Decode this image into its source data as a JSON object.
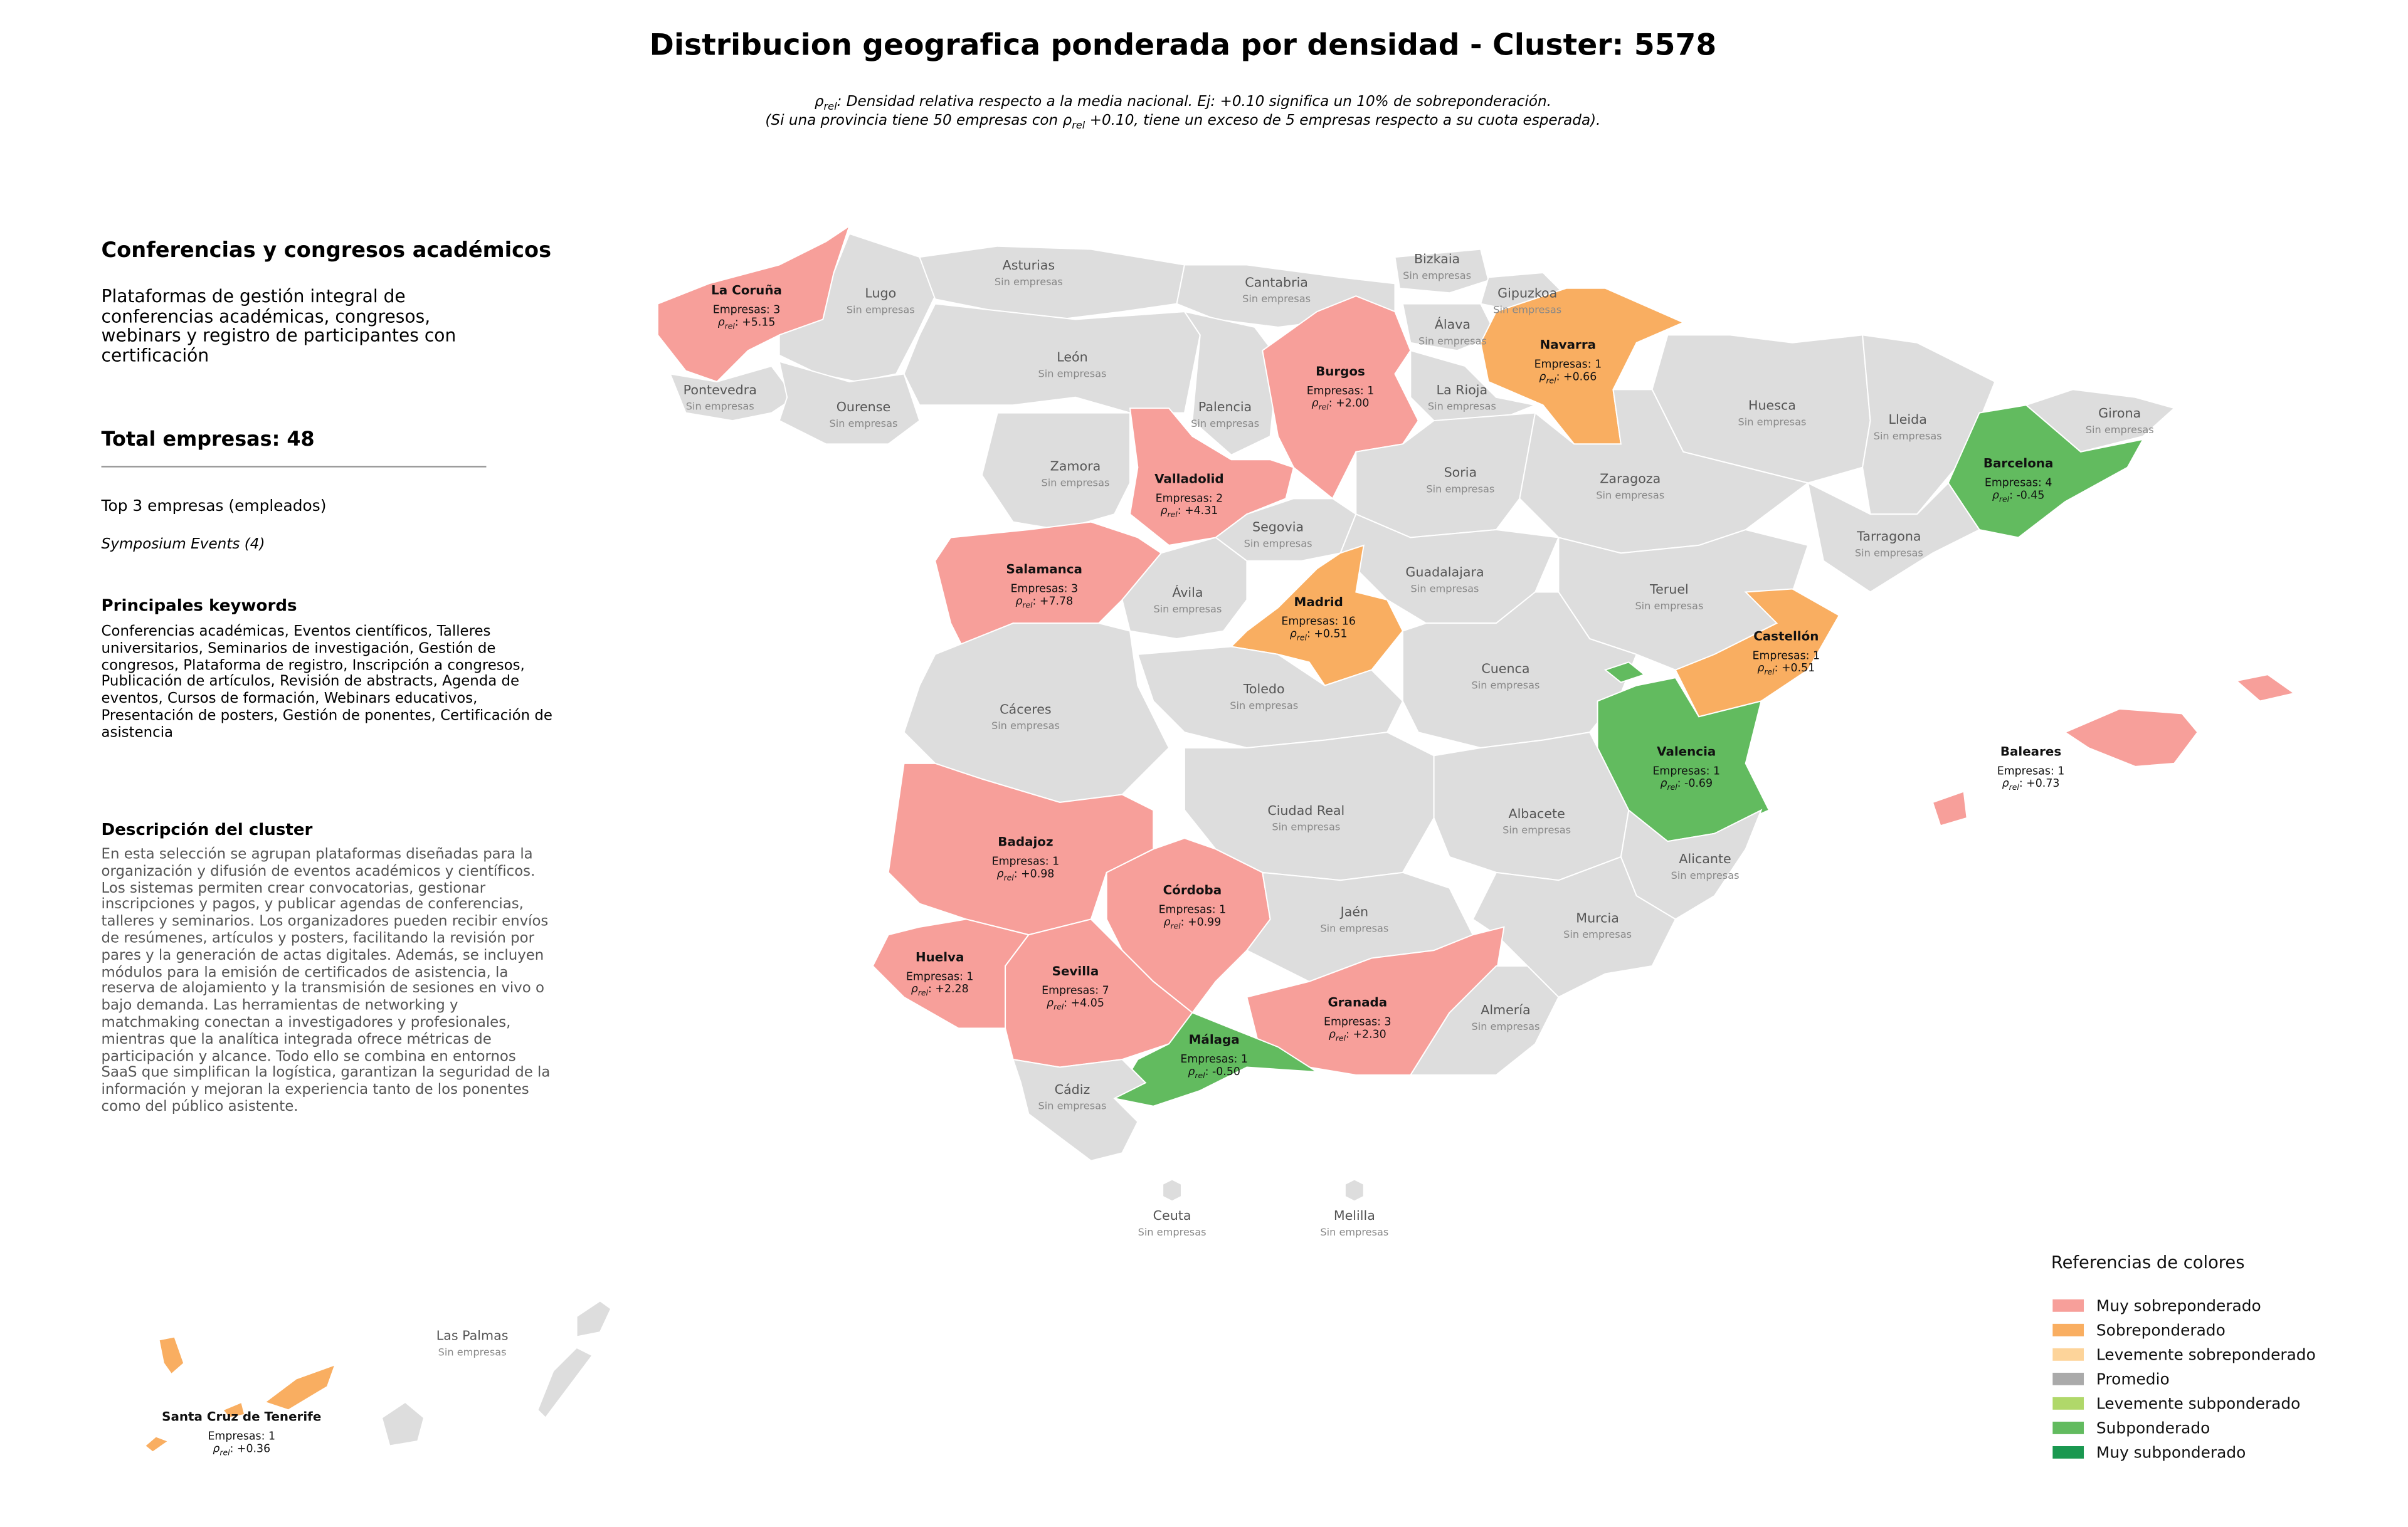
{
  "title": "Distribucion geografica ponderada por densidad - Cluster: 5578",
  "subtitle": [
    [
      "ρ",
      {
        "text": "rel",
        "subscript": true
      },
      ": Densidad relativa respecto a la media nacional. Ej: +0.10 significa un 10% de sobreponderación."
    ],
    [
      "(Si una provincia tiene 50 empresas con ρ",
      {
        "text": "rel",
        "subscript": true
      },
      " +0.10, tiene un exceso de 5 empresas respecto a su cuota esperada)."
    ]
  ],
  "panel": {
    "heading": "Conferencias y congresos académicos",
    "description": "Plataformas de gestión integral de conferencias académicas, congresos, webinars y registro de participantes con certificación",
    "total": "Total empresas: 48",
    "top_heading": "Top 3 empresas (empleados)",
    "top_companies": [
      "Symposium Events (4)"
    ],
    "keywords_heading": "Principales keywords",
    "keywords": "Conferencias académicas, Eventos científicos, Talleres universitarios, Seminarios de investigación, Gestión de congresos, Plataforma de registro, Inscripción a congresos, Publicación de artículos, Revisión de abstracts, Agenda de eventos, Cursos de formación, Webinars educativos, Presentación de posters, Gestión de ponentes, Certificación de asistencia",
    "cluster_heading": "Descripción del cluster",
    "cluster_description": "En esta selección se agrupan plataformas diseñadas para la organización y difusión de eventos académicos y científicos. Los sistemas permiten crear convocatorias, gestionar inscripciones y pagos, y publicar agendas de conferencias, talleres y seminarios. Los organizadores pueden recibir envíos de resúmenes, artículos y posters, facilitando la revisión por pares y la generación de actas digitales. Además, se incluyen módulos para la emisión de certificados de asistencia, la reserva de alojamiento y la transmisión de sesiones en vivo o bajo demanda. Las herramientas de networking y matchmaking conectan a investigadores y profesionales, mientras que la analítica integrada ofrece métricas de participación y alcance. Todo ello se combina en entornos SaaS que simplifican la logística, garantizan la seguridad de la información y mejoran la experiencia tanto de los ponentes como del público asistente."
  },
  "rho_symbol": "ρ",
  "rho_sub": "rel",
  "no_data_color": "#dddddd",
  "provinces": [
    {
      "name": "La Coruña",
      "companies": "Empresas: 3",
      "rho": ": +5.15",
      "color": "#f79f9a"
    },
    {
      "name": "Lugo",
      "companies": "Sin empresas"
    },
    {
      "name": "Asturias",
      "companies": "Sin empresas"
    },
    {
      "name": "Cantabria",
      "companies": "Sin empresas"
    },
    {
      "name": "Bizkaia",
      "companies": "Sin empresas"
    },
    {
      "name": "Gipuzkoa",
      "companies": "Sin empresas"
    },
    {
      "name": "Álava",
      "companies": "Sin empresas"
    },
    {
      "name": "Navarra",
      "companies": "Empresas: 1",
      "rho": ": +0.66",
      "color": "#f9ae61"
    },
    {
      "name": "Pontevedra",
      "companies": "Sin empresas"
    },
    {
      "name": "Ourense",
      "companies": "Sin empresas"
    },
    {
      "name": "León",
      "companies": "Sin empresas"
    },
    {
      "name": "Palencia",
      "companies": "Sin empresas"
    },
    {
      "name": "Burgos",
      "companies": "Empresas: 1",
      "rho": ": +2.00",
      "color": "#f79f9a"
    },
    {
      "name": "La Rioja",
      "companies": "Sin empresas"
    },
    {
      "name": "Zamora",
      "companies": "Sin empresas"
    },
    {
      "name": "Valladolid",
      "companies": "Empresas: 2",
      "rho": ": +4.31",
      "color": "#f79f9a"
    },
    {
      "name": "Soria",
      "companies": "Sin empresas"
    },
    {
      "name": "Huesca",
      "companies": "Sin empresas"
    },
    {
      "name": "Lleida",
      "companies": "Sin empresas"
    },
    {
      "name": "Girona",
      "companies": "Sin empresas"
    },
    {
      "name": "Barcelona",
      "companies": "Empresas: 4",
      "rho": ": -0.45",
      "color": "#62bb5f"
    },
    {
      "name": "Zaragoza",
      "companies": "Sin empresas"
    },
    {
      "name": "Tarragona",
      "companies": "Sin empresas"
    },
    {
      "name": "Segovia",
      "companies": "Sin empresas"
    },
    {
      "name": "Salamanca",
      "companies": "Empresas: 3",
      "rho": ": +7.78",
      "color": "#f79f9a"
    },
    {
      "name": "Ávila",
      "companies": "Sin empresas"
    },
    {
      "name": "Guadalajara",
      "companies": "Sin empresas"
    },
    {
      "name": "Madrid",
      "companies": "Empresas: 16",
      "rho": ": +0.51",
      "color": "#f9ae61"
    },
    {
      "name": "Teruel",
      "companies": "Sin empresas"
    },
    {
      "name": "Castellón",
      "companies": "Empresas: 1",
      "rho": ": +0.51",
      "color": "#f9ae61"
    },
    {
      "name": "Cáceres",
      "companies": "Sin empresas"
    },
    {
      "name": "Toledo",
      "companies": "Sin empresas"
    },
    {
      "name": "Cuenca",
      "companies": "Sin empresas"
    },
    {
      "name": "Valencia",
      "companies": "Empresas: 1",
      "rho": ": -0.69",
      "color": "#62bb5f"
    },
    {
      "name": "Baleares",
      "companies": "Empresas: 1",
      "rho": ": +0.73",
      "color": "#f79f9a"
    },
    {
      "name": "Badajoz",
      "companies": "Empresas: 1",
      "rho": ": +0.98",
      "color": "#f79f9a"
    },
    {
      "name": "Ciudad Real",
      "companies": "Sin empresas"
    },
    {
      "name": "Albacete",
      "companies": "Sin empresas"
    },
    {
      "name": "Alicante",
      "companies": "Sin empresas"
    },
    {
      "name": "Córdoba",
      "companies": "Empresas: 1",
      "rho": ": +0.99",
      "color": "#f79f9a"
    },
    {
      "name": "Jaén",
      "companies": "Sin empresas"
    },
    {
      "name": "Murcia",
      "companies": "Sin empresas"
    },
    {
      "name": "Huelva",
      "companies": "Empresas: 1",
      "rho": ": +2.28",
      "color": "#f79f9a"
    },
    {
      "name": "Sevilla",
      "companies": "Empresas: 7",
      "rho": ": +4.05",
      "color": "#f79f9a"
    },
    {
      "name": "Granada",
      "companies": "Empresas: 3",
      "rho": ": +2.30",
      "color": "#f79f9a"
    },
    {
      "name": "Almería",
      "companies": "Sin empresas"
    },
    {
      "name": "Málaga",
      "companies": "Empresas: 1",
      "rho": ": -0.50",
      "color": "#62bb5f"
    },
    {
      "name": "Cádiz",
      "companies": "Sin empresas"
    },
    {
      "name": "Ceuta",
      "companies": "Sin empresas"
    },
    {
      "name": "Melilla",
      "companies": "Sin empresas"
    },
    {
      "name": "Las Palmas",
      "companies": "Sin empresas"
    },
    {
      "name": "Santa Cruz de Tenerife",
      "companies": "Empresas: 1",
      "rho": ": +0.36",
      "color": "#f9ae61"
    }
  ],
  "legend": {
    "title": "Referencias de colores",
    "items": [
      {
        "label": "Muy sobreponderado",
        "color": "#f79f9a"
      },
      {
        "label": "Sobreponderado",
        "color": "#f9ae61"
      },
      {
        "label": "Levemente sobreponderado",
        "color": "#fdd49a"
      },
      {
        "label": "Promedio",
        "color": "#aaaaaa"
      },
      {
        "label": "Levemente subponderado",
        "color": "#b0d86a"
      },
      {
        "label": "Subponderado",
        "color": "#62bb5f"
      },
      {
        "label": "Muy subponderado",
        "color": "#1a9850"
      }
    ]
  }
}
